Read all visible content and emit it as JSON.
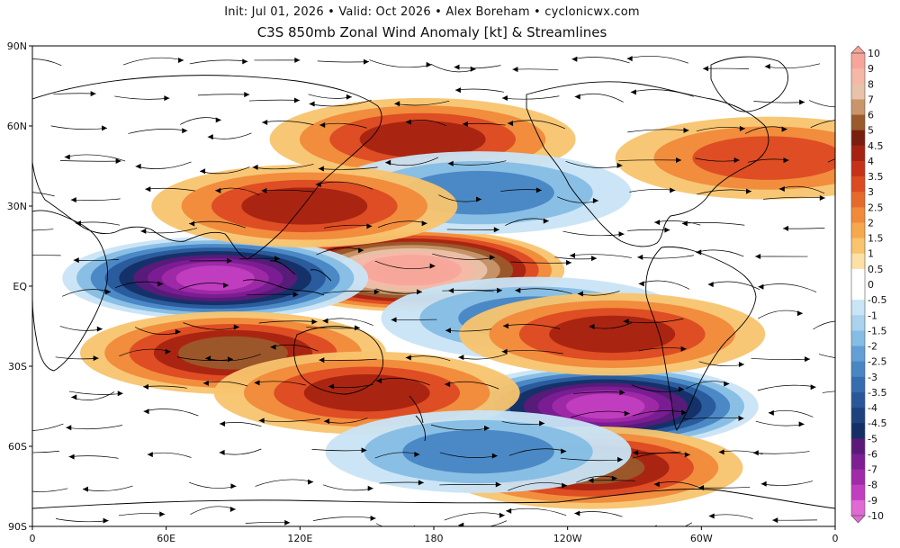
{
  "header": {
    "subtitle": "Init: Jul 01, 2026 • Valid: Oct 2026 • Alex Boreham • cyclonicwx.com",
    "title": "C3S 850mb Zonal Wind Anomaly [kt] & Streamlines"
  },
  "map": {
    "projection": "equirectangular",
    "lon_range": [
      0,
      360
    ],
    "lat_range": [
      -90,
      90
    ],
    "x_ticks": [
      "0",
      "60E",
      "120E",
      "180",
      "120W",
      "60W",
      "0"
    ],
    "y_ticks": [
      "90N",
      "60N",
      "30N",
      "EQ",
      "30S",
      "60S",
      "90S"
    ],
    "streamlines": "shown",
    "coastlines": "shown"
  },
  "colorbar": {
    "position": "right",
    "labels": [
      "10",
      "9",
      "8",
      "7",
      "6",
      "5",
      "4.5",
      "4",
      "3.5",
      "3",
      "2.5",
      "2",
      "1.5",
      "1",
      "0.5",
      "0",
      "-0.5",
      "-1",
      "-1.5",
      "-2",
      "-2.5",
      "-3",
      "-3.5",
      "-4",
      "-4.5",
      "-5",
      "-6",
      "-7",
      "-8",
      "-9",
      "-10"
    ],
    "colors": [
      "#f7a59a",
      "#f5b8a8",
      "#e9c3a9",
      "#c8966a",
      "#9a5a2c",
      "#7a1f0f",
      "#a52312",
      "#c53218",
      "#dc4a22",
      "#e66a2c",
      "#f08a3a",
      "#f6a84c",
      "#f8c46e",
      "#fde0a4",
      "#ffffff",
      "#ffffff",
      "#c9e4f5",
      "#a8d2ee",
      "#85bde4",
      "#639fd5",
      "#4886c4",
      "#356db0",
      "#28589a",
      "#1d437f",
      "#142f66",
      "#5b1a7a",
      "#7d1e93",
      "#a02aa9",
      "#c23ec0",
      "#e069d4"
    ]
  },
  "anomalies": [
    {
      "name": "equatorial-pacific-westerly",
      "lon": 170,
      "lat": 6,
      "value": 10
    },
    {
      "name": "indian-ocean-easterly",
      "lon": 82,
      "lat": 3,
      "value": -9
    },
    {
      "name": "south-pacific-easterly",
      "lon": 257,
      "lat": -45,
      "value": -9
    },
    {
      "name": "southern-ocean-westerly",
      "lon": 250,
      "lat": -68,
      "value": 5
    },
    {
      "name": "south-indian-westerly",
      "lon": 90,
      "lat": -25,
      "value": 5
    },
    {
      "name": "south-pacific-westerly",
      "lon": 150,
      "lat": -40,
      "value": 4.5
    },
    {
      "name": "north-pacific-westerly",
      "lon": 175,
      "lat": 55,
      "value": 4
    },
    {
      "name": "north-pacific-easterly",
      "lon": 200,
      "lat": 35,
      "value": -3.5
    },
    {
      "name": "east-asia-westerly",
      "lon": 122,
      "lat": 30,
      "value": 4
    },
    {
      "name": "tropical-pacific-easterly",
      "lon": 225,
      "lat": -12,
      "value": -3
    },
    {
      "name": "south-america-westerly",
      "lon": 260,
      "lat": -18,
      "value": 4
    },
    {
      "name": "north-atlantic-westerly",
      "lon": 330,
      "lat": 48,
      "value": 3
    },
    {
      "name": "southern-ocean-easterly",
      "lon": 200,
      "lat": -62,
      "value": -3
    }
  ]
}
